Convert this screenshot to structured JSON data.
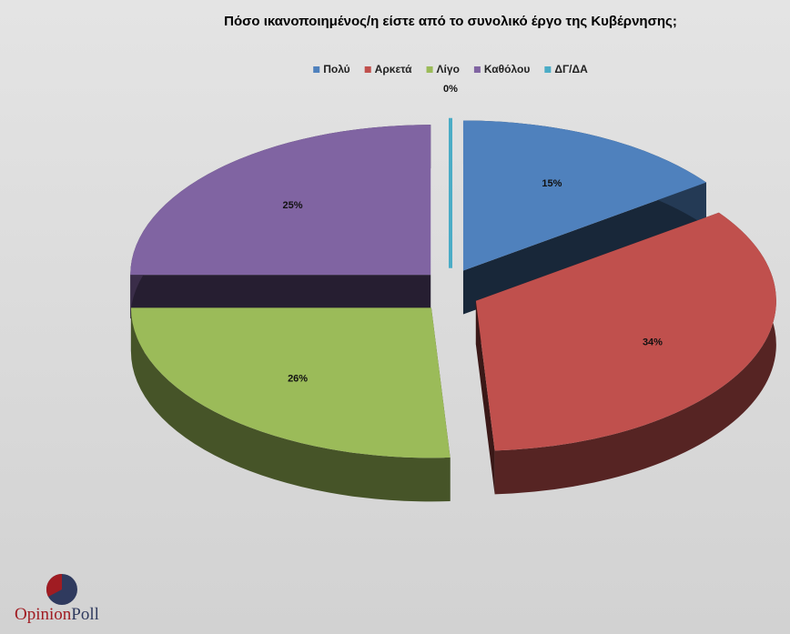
{
  "chart_data": {
    "type": "pie3d",
    "title": "Πόσο ικανοποιημένος/η  είστε από το συνολικό έργο της Κυβέρνησης;",
    "categories": [
      "Πολύ",
      "Αρκετά",
      "Λίγο",
      "Καθόλου",
      "ΔΓ/ΔΑ"
    ],
    "values": [
      15,
      34,
      26,
      25,
      0
    ],
    "value_labels": [
      "15%",
      "34%",
      "26%",
      "25%",
      "0%"
    ],
    "colors": [
      "#4f81bd",
      "#c0504d",
      "#9bbb59",
      "#8064a2",
      "#4bacc6"
    ],
    "legend": "top"
  },
  "logo": [
    "Opinion",
    "Poll"
  ]
}
